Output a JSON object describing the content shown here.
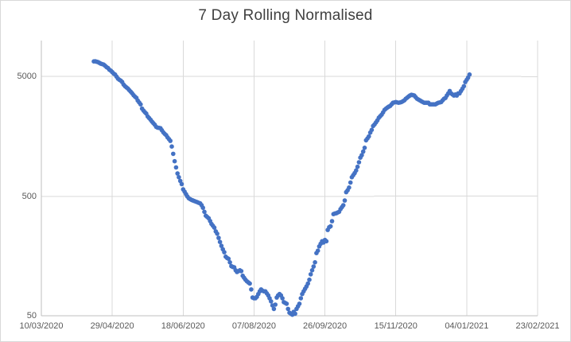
{
  "colors": {
    "background": "#FFFFFF",
    "border": "#D9D9D9",
    "gridline": "#D9D9D9",
    "axis_line": "#BFBFBF",
    "label_text": "#595959",
    "title_text": "#404040",
    "marker": "#4472C4"
  },
  "chart_data": {
    "type": "scatter",
    "title": "7 Day Rolling Normalised",
    "legend": "none",
    "grid": true,
    "x_axis": {
      "start_date": "10/03/2020",
      "tick_interval_days": 50,
      "span_days": 350,
      "tick_labels": [
        "10/03/2020",
        "29/04/2020",
        "18/06/2020",
        "07/08/2020",
        "26/09/2020",
        "15/11/2020",
        "04/01/2021",
        "23/02/2021"
      ]
    },
    "y_axis": {
      "scale": "log",
      "min": 50,
      "max": 10000,
      "tick_values": [
        50,
        500,
        5000
      ],
      "tick_labels": [
        "50",
        "500",
        "5000"
      ]
    },
    "marker_color": "#4472C4",
    "points_format": "[days_since_10/03/2020, value]",
    "points": [
      [
        37,
        6700
      ],
      [
        38,
        6720
      ],
      [
        39,
        6650
      ],
      [
        40,
        6600
      ],
      [
        41,
        6500
      ],
      [
        42,
        6400
      ],
      [
        43,
        6350
      ],
      [
        44,
        6300
      ],
      [
        45,
        6150
      ],
      [
        46,
        6000
      ],
      [
        47,
        5900
      ],
      [
        48,
        5700
      ],
      [
        49,
        5600
      ],
      [
        50,
        5450
      ],
      [
        51,
        5300
      ],
      [
        52,
        5200
      ],
      [
        53,
        5000
      ],
      [
        54,
        4800
      ],
      [
        55,
        4700
      ],
      [
        56,
        4630
      ],
      [
        57,
        4500
      ],
      [
        58,
        4290
      ],
      [
        59,
        4150
      ],
      [
        60,
        4060
      ],
      [
        61,
        3970
      ],
      [
        62,
        3850
      ],
      [
        63,
        3740
      ],
      [
        64,
        3630
      ],
      [
        65,
        3500
      ],
      [
        66,
        3400
      ],
      [
        67,
        3320
      ],
      [
        68,
        3150
      ],
      [
        69,
        3040
      ],
      [
        70,
        2930
      ],
      [
        71,
        2700
      ],
      [
        72,
        2600
      ],
      [
        73,
        2520
      ],
      [
        74,
        2450
      ],
      [
        75,
        2320
      ],
      [
        76,
        2250
      ],
      [
        77,
        2180
      ],
      [
        78,
        2100
      ],
      [
        79,
        2040
      ],
      [
        80,
        1980
      ],
      [
        81,
        1900
      ],
      [
        82,
        1870
      ],
      [
        83,
        1860
      ],
      [
        84,
        1850
      ],
      [
        85,
        1780
      ],
      [
        86,
        1710
      ],
      [
        87,
        1660
      ],
      [
        88,
        1620
      ],
      [
        89,
        1550
      ],
      [
        90,
        1500
      ],
      [
        91,
        1450
      ],
      [
        92,
        1300
      ],
      [
        93,
        1130
      ],
      [
        94,
        980
      ],
      [
        95,
        870
      ],
      [
        96,
        774
      ],
      [
        97,
        720
      ],
      [
        98,
        670
      ],
      [
        99,
        630
      ],
      [
        100,
        570
      ],
      [
        101,
        545
      ],
      [
        102,
        520
      ],
      [
        103,
        497
      ],
      [
        104,
        480
      ],
      [
        105,
        472
      ],
      [
        106,
        465
      ],
      [
        107,
        460
      ],
      [
        108,
        455
      ],
      [
        109,
        450
      ],
      [
        110,
        445
      ],
      [
        111,
        440
      ],
      [
        112,
        435
      ],
      [
        113,
        420
      ],
      [
        114,
        400
      ],
      [
        115,
        370
      ],
      [
        116,
        343
      ],
      [
        117,
        335
      ],
      [
        118,
        327
      ],
      [
        119,
        310
      ],
      [
        120,
        293
      ],
      [
        121,
        283
      ],
      [
        122,
        273
      ],
      [
        123,
        254
      ],
      [
        124,
        243
      ],
      [
        125,
        224
      ],
      [
        126,
        207
      ],
      [
        127,
        192
      ],
      [
        128,
        180
      ],
      [
        129,
        170
      ],
      [
        130,
        156
      ],
      [
        131,
        152
      ],
      [
        132,
        150
      ],
      [
        133,
        140
      ],
      [
        134,
        130
      ],
      [
        135,
        128
      ],
      [
        136,
        127
      ],
      [
        137,
        120
      ],
      [
        138,
        116
      ],
      [
        139,
        118
      ],
      [
        140,
        120
      ],
      [
        141,
        118
      ],
      [
        142,
        108
      ],
      [
        143,
        104
      ],
      [
        144,
        100
      ],
      [
        145,
        97
      ],
      [
        146,
        95
      ],
      [
        147,
        93
      ],
      [
        148,
        83
      ],
      [
        149,
        71
      ],
      [
        150,
        70
      ],
      [
        151,
        70
      ],
      [
        152,
        72
      ],
      [
        153,
        76
      ],
      [
        154,
        80
      ],
      [
        155,
        83
      ],
      [
        156,
        81
      ],
      [
        157,
        80
      ],
      [
        158,
        80
      ],
      [
        159,
        77
      ],
      [
        160,
        74
      ],
      [
        161,
        70
      ],
      [
        162,
        66
      ],
      [
        163,
        61
      ],
      [
        164,
        57
      ],
      [
        165,
        62
      ],
      [
        166,
        71
      ],
      [
        167,
        74
      ],
      [
        168,
        76
      ],
      [
        169,
        74
      ],
      [
        170,
        70
      ],
      [
        171,
        65
      ],
      [
        172,
        64
      ],
      [
        173,
        63
      ],
      [
        174,
        57
      ],
      [
        175,
        53
      ],
      [
        176,
        52
      ],
      [
        177,
        51
      ],
      [
        178,
        54
      ],
      [
        179,
        52
      ],
      [
        180,
        57
      ],
      [
        181,
        60
      ],
      [
        182,
        63
      ],
      [
        183,
        70
      ],
      [
        184,
        76
      ],
      [
        185,
        80
      ],
      [
        186,
        84
      ],
      [
        187,
        88
      ],
      [
        188,
        93
      ],
      [
        189,
        100
      ],
      [
        190,
        111
      ],
      [
        191,
        120
      ],
      [
        192,
        129
      ],
      [
        193,
        140
      ],
      [
        194,
        167
      ],
      [
        195,
        175
      ],
      [
        196,
        190
      ],
      [
        197,
        200
      ],
      [
        198,
        210
      ],
      [
        199,
        205
      ],
      [
        200,
        215
      ],
      [
        201,
        210
      ],
      [
        202,
        261
      ],
      [
        203,
        275
      ],
      [
        204,
        280
      ],
      [
        205,
        309
      ],
      [
        206,
        354
      ],
      [
        207,
        358
      ],
      [
        208,
        360
      ],
      [
        209,
        365
      ],
      [
        210,
        370
      ],
      [
        211,
        390
      ],
      [
        212,
        405
      ],
      [
        213,
        420
      ],
      [
        214,
        460
      ],
      [
        215,
        540
      ],
      [
        216,
        560
      ],
      [
        217,
        590
      ],
      [
        218,
        650
      ],
      [
        219,
        720
      ],
      [
        220,
        750
      ],
      [
        221,
        780
      ],
      [
        222,
        820
      ],
      [
        223,
        880
      ],
      [
        224,
        960
      ],
      [
        225,
        1050
      ],
      [
        226,
        1100
      ],
      [
        227,
        1180
      ],
      [
        228,
        1270
      ],
      [
        229,
        1465
      ],
      [
        230,
        1520
      ],
      [
        231,
        1580
      ],
      [
        232,
        1700
      ],
      [
        233,
        1790
      ],
      [
        234,
        1930
      ],
      [
        235,
        1990
      ],
      [
        236,
        2070
      ],
      [
        237,
        2150
      ],
      [
        238,
        2260
      ],
      [
        239,
        2330
      ],
      [
        240,
        2400
      ],
      [
        241,
        2510
      ],
      [
        242,
        2630
      ],
      [
        243,
        2690
      ],
      [
        244,
        2750
      ],
      [
        245,
        2800
      ],
      [
        246,
        2840
      ],
      [
        247,
        2930
      ],
      [
        248,
        3020
      ],
      [
        249,
        3040
      ],
      [
        250,
        3060
      ],
      [
        251,
        3040
      ],
      [
        252,
        3020
      ],
      [
        253,
        3040
      ],
      [
        254,
        3060
      ],
      [
        255,
        3110
      ],
      [
        256,
        3160
      ],
      [
        257,
        3260
      ],
      [
        258,
        3330
      ],
      [
        259,
        3410
      ],
      [
        260,
        3470
      ],
      [
        261,
        3520
      ],
      [
        262,
        3500
      ],
      [
        263,
        3470
      ],
      [
        264,
        3360
      ],
      [
        265,
        3260
      ],
      [
        266,
        3210
      ],
      [
        267,
        3160
      ],
      [
        268,
        3110
      ],
      [
        269,
        3060
      ],
      [
        270,
        3020
      ],
      [
        271,
        3020
      ],
      [
        272,
        3020
      ],
      [
        273,
        3020
      ],
      [
        274,
        2930
      ],
      [
        275,
        2930
      ],
      [
        276,
        2930
      ],
      [
        277,
        2930
      ],
      [
        278,
        2930
      ],
      [
        279,
        2980
      ],
      [
        280,
        3020
      ],
      [
        281,
        3040
      ],
      [
        282,
        3060
      ],
      [
        283,
        3160
      ],
      [
        284,
        3260
      ],
      [
        285,
        3310
      ],
      [
        286,
        3470
      ],
      [
        287,
        3620
      ],
      [
        288,
        3790
      ],
      [
        289,
        3620
      ],
      [
        290,
        3540
      ],
      [
        291,
        3470
      ],
      [
        292,
        3540
      ],
      [
        293,
        3470
      ],
      [
        294,
        3620
      ],
      [
        295,
        3620
      ],
      [
        296,
        3790
      ],
      [
        297,
        3960
      ],
      [
        298,
        4150
      ],
      [
        299,
        4500
      ],
      [
        300,
        4700
      ],
      [
        301,
        4900
      ],
      [
        302,
        5200
      ]
    ]
  }
}
